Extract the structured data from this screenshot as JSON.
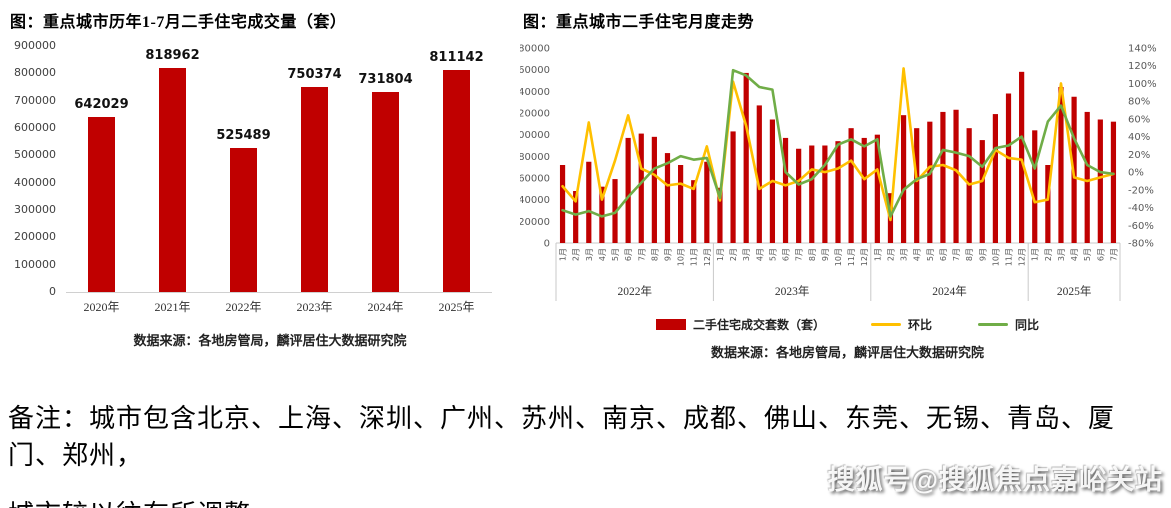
{
  "note": {
    "line1": "备注：城市包含北京、上海、深圳、广州、苏州、南京、成都、佛山、东莞、无锡、青岛、厦门、郑州，",
    "line2": "城市较以往有所调整。"
  },
  "watermark": "搜狐号@搜狐焦点嘉峪关站",
  "colors": {
    "bar_red": "#c00000",
    "line_yellow": "#ffc000",
    "line_green": "#70ad47",
    "axis_text": "#595959",
    "divider": "#c9c9c9"
  },
  "chart_data": [
    {
      "type": "bar",
      "title": "图：重点城市历年1-7月二手住宅成交量（套）",
      "source": "数据来源：各地房管局，麟评居住大数据研究院",
      "categories": [
        "2020年",
        "2021年",
        "2022年",
        "2023年",
        "2024年",
        "2025年"
      ],
      "values": [
        642029,
        818962,
        525489,
        750374,
        731804,
        811142
      ],
      "bar_color": "#c00000",
      "y_axis": {
        "min": 0,
        "max": 900000,
        "step": 100000
      },
      "grid": "off",
      "data_labels": "on"
    },
    {
      "type": "bar+line",
      "title": "图：重点城市二手住宅月度走势",
      "source": "数据来源：各地房管局，麟评居住大数据研究院",
      "legend_position": "bottom",
      "grid": "off",
      "left_axis": {
        "min": 0,
        "max": 180000,
        "step": 20000
      },
      "right_axis": {
        "min": -80,
        "max": 140,
        "step": 20,
        "suffix": "%"
      },
      "year_groups": [
        {
          "year": "2022年",
          "month_count": 12
        },
        {
          "year": "2023年",
          "month_count": 12
        },
        {
          "year": "2024年",
          "month_count": 12
        },
        {
          "year": "2025年",
          "month_count": 7
        }
      ],
      "months": [
        "1月",
        "2月",
        "3月",
        "4月",
        "5月",
        "6月",
        "7月",
        "8月",
        "9月",
        "10月",
        "11月",
        "12月",
        "1月",
        "2月",
        "3月",
        "4月",
        "5月",
        "6月",
        "7月",
        "8月",
        "9月",
        "10月",
        "11月",
        "12月",
        "1月",
        "2月",
        "3月",
        "4月",
        "5月",
        "6月",
        "7月",
        "8月",
        "9月",
        "10月",
        "11月",
        "12月",
        "1月",
        "2月",
        "3月",
        "4月",
        "5月",
        "6月",
        "7月"
      ],
      "series": [
        {
          "name": "二手住宅成交套数（套）",
          "type": "bar",
          "axis": "left",
          "color": "#c00000",
          "values": [
            72000,
            48000,
            75000,
            52000,
            59000,
            97000,
            101000,
            98000,
            83000,
            72000,
            58000,
            75000,
            51000,
            103000,
            157000,
            127000,
            114000,
            97000,
            87000,
            90000,
            90000,
            94000,
            106000,
            97000,
            100000,
            46000,
            118000,
            106000,
            112000,
            121000,
            123000,
            106000,
            95000,
            119000,
            138000,
            158000,
            104000,
            72000,
            144000,
            135000,
            121000,
            114000,
            112000
          ]
        },
        {
          "name": "环比",
          "type": "line",
          "axis": "right",
          "color": "#ffc000",
          "values": [
            -16,
            -33,
            56,
            -31,
            13,
            64,
            4,
            -3,
            -15,
            -13,
            -19,
            29,
            -32,
            102,
            52,
            -19,
            -10,
            -15,
            -10,
            3,
            0,
            4,
            13,
            -8,
            3,
            -54,
            117,
            -10,
            6,
            8,
            2,
            -14,
            -10,
            25,
            16,
            14,
            -34,
            -31,
            100,
            -6,
            -10,
            -6,
            -2
          ]
        },
        {
          "name": "同比",
          "type": "line",
          "axis": "right",
          "color": "#70ad47",
          "values": [
            -43,
            -48,
            -44,
            -50,
            -46,
            -28,
            -12,
            4,
            10,
            18,
            14,
            16,
            -29,
            115,
            109,
            96,
            93,
            0,
            -14,
            -8,
            8,
            31,
            37,
            29,
            37,
            -50,
            -20,
            -8,
            -2,
            25,
            22,
            18,
            6,
            27,
            30,
            40,
            4,
            57,
            75,
            38,
            8,
            0,
            -2
          ]
        }
      ]
    }
  ]
}
